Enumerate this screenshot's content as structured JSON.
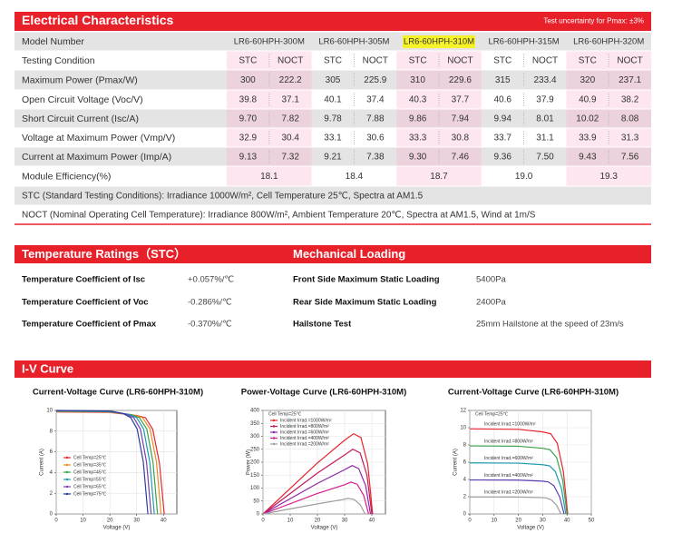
{
  "header": {
    "title": "Electrical Characteristics",
    "note": "Test uncertainty for Pmax: ±3%"
  },
  "table": {
    "header": [
      "Model Number",
      "LR6-60HPH-300M",
      "LR6-60HPH-305M",
      "LR6-60HPH-310M",
      "LR6-60HPH-315M",
      "LR6-60HPH-320M"
    ],
    "condition": [
      "Testing Condition",
      "STC",
      "NOCT",
      "STC",
      "NOCT",
      "STC",
      "NOCT",
      "STC",
      "NOCT",
      "STC",
      "NOCT"
    ],
    "rows": [
      [
        "Maximum Power (Pmax/W)",
        "300",
        "222.2",
        "305",
        "225.9",
        "310",
        "229.6",
        "315",
        "233.4",
        "320",
        "237.1"
      ],
      [
        "Open Circuit Voltage (Voc/V)",
        "39.8",
        "37.1",
        "40.1",
        "37.4",
        "40.3",
        "37.7",
        "40.6",
        "37.9",
        "40.9",
        "38.2"
      ],
      [
        "Short Circuit Current (Isc/A)",
        "9.70",
        "7.82",
        "9.78",
        "7.88",
        "9.86",
        "7.94",
        "9.94",
        "8.01",
        "10.02",
        "8.08"
      ],
      [
        "Voltage at Maximum Power (Vmp/V)",
        "32.9",
        "30.4",
        "33.1",
        "30.6",
        "33.3",
        "30.8",
        "33.7",
        "31.1",
        "33.9",
        "31.3"
      ],
      [
        "Current at Maximum Power (Imp/A)",
        "9.13",
        "7.32",
        "9.21",
        "7.38",
        "9.30",
        "7.46",
        "9.36",
        "7.50",
        "9.43",
        "7.56"
      ]
    ],
    "efficiency": [
      "Module Efficiency(%)",
      "18.1",
      "18.4",
      "18.7",
      "19.0",
      "19.3"
    ],
    "notes": [
      "STC (Standard Testing Conditions): Irradiance 1000W/m², Cell Temperature 25℃, Spectra at AM1.5",
      "NOCT (Nominal Operating Cell Temperature): Irradiance 800W/m², Ambient Temperature 20℃, Spectra at AM1.5, Wind at 1m/S"
    ]
  },
  "temperature": {
    "title": "Temperature Ratings（STC）",
    "rows": [
      [
        "Temperature Coefficient of  Isc",
        "+0.057%/℃"
      ],
      [
        "Temperature Coefficient of  Voc",
        "-0.286%/℃"
      ],
      [
        "Temperature Coefficient of  Pmax",
        "-0.370%/℃"
      ]
    ]
  },
  "mechanical": {
    "title": "Mechanical Loading",
    "rows": [
      [
        "Front Side Maximum Static Loading",
        "5400Pa"
      ],
      [
        "Rear Side Maximum Static Loading",
        "2400Pa"
      ],
      [
        "Hailstone Test",
        "25mm Hailstone at the speed of 23m/s"
      ]
    ]
  },
  "curves_title": "I-V Curve",
  "chart_data": [
    {
      "type": "line",
      "title": "Current-Voltage Curve (LR6-60HPH-310M)",
      "x_label": "Voltage (V)",
      "y_label": "Current (A)",
      "xlim": [
        0,
        45
      ],
      "ylim": [
        0,
        10
      ],
      "xticks": [
        0,
        10,
        20,
        30,
        40
      ],
      "yticks": [
        0,
        2,
        4,
        6,
        8,
        10
      ],
      "grid": true,
      "legend": "lower left",
      "series": [
        {
          "name": "Cell Temp=25℃",
          "color": "#e8262d",
          "x": [
            0,
            20,
            30,
            33.3,
            36,
            38.5,
            40.3
          ],
          "values": [
            9.86,
            9.81,
            9.51,
            9.3,
            8.18,
            4.93,
            0
          ]
        },
        {
          "name": "Cell Temp=35℃",
          "color": "#f08a24",
          "x": [
            0,
            20,
            29,
            32.2,
            35,
            37.4,
            39.1
          ],
          "values": [
            9.89,
            9.84,
            9.55,
            9.3,
            8.2,
            5,
            0
          ]
        },
        {
          "name": "Cell Temp=45℃",
          "color": "#3aa24a",
          "x": [
            0,
            20,
            28,
            31,
            33.8,
            36.1,
            37.8
          ],
          "values": [
            9.92,
            9.87,
            9.6,
            9.3,
            8.2,
            5,
            0
          ]
        },
        {
          "name": "Cell Temp=55℃",
          "color": "#1f9bb0",
          "x": [
            0,
            20,
            27,
            30,
            32.6,
            34.9,
            36.6
          ],
          "values": [
            9.95,
            9.9,
            9.62,
            9.3,
            8.2,
            5,
            0
          ]
        },
        {
          "name": "Cell Temp=65℃",
          "color": "#7a3fb0",
          "x": [
            0,
            20,
            26,
            28.9,
            31.4,
            33.7,
            35.4
          ],
          "values": [
            9.98,
            9.93,
            9.65,
            9.3,
            8.2,
            5,
            0
          ]
        },
        {
          "name": "Cell Temp=75℃",
          "color": "#2b3f9e",
          "x": [
            0,
            20,
            25,
            27.8,
            30.2,
            32.5,
            34.2
          ],
          "values": [
            10,
            9.95,
            9.7,
            9.3,
            8.2,
            5,
            0
          ]
        }
      ]
    },
    {
      "type": "line",
      "title": "Power-Voltage Curve (LR6-60HPH-310M)",
      "x_label": "Voltage (V)",
      "y_label": "Power (W)",
      "xlim": [
        0,
        45
      ],
      "ylim": [
        0,
        400
      ],
      "xticks": [
        0,
        10,
        20,
        30,
        40
      ],
      "yticks": [
        0,
        50,
        100,
        150,
        200,
        250,
        300,
        350,
        400
      ],
      "grid": true,
      "legend": "upper left",
      "annotation": "Cell Temp=25℃",
      "series": [
        {
          "name": "Incident Irrad.=1000W/m²",
          "color": "#e8262d",
          "x": [
            0,
            20,
            30,
            33.3,
            36,
            38.5,
            40.3
          ],
          "values": [
            0,
            197,
            285,
            310,
            295,
            192,
            0
          ]
        },
        {
          "name": "Incident Irrad.=800W/m²",
          "color": "#c2185b",
          "x": [
            0,
            20,
            30,
            33,
            35.7,
            38.2,
            40
          ],
          "values": [
            0,
            158,
            228,
            250,
            236,
            150,
            0
          ]
        },
        {
          "name": "Incident Irrad.=600W/m²",
          "color": "#8e24aa",
          "x": [
            0,
            20,
            30,
            32.8,
            35.2,
            37.7,
            39.5
          ],
          "values": [
            0,
            118,
            171,
            187,
            175,
            110,
            0
          ]
        },
        {
          "name": "Incident Irrad.=400W/m²",
          "color": "#d81b8c",
          "x": [
            0,
            20,
            30,
            32.3,
            34.6,
            37,
            38.8
          ],
          "values": [
            0,
            79,
            113,
            123,
            115,
            72,
            0
          ]
        },
        {
          "name": "Incident Irrad.=200W/m²",
          "color": "#9e9e9e",
          "x": [
            0,
            20,
            29,
            31.3,
            33.5,
            35.8,
            37.5
          ],
          "values": [
            0,
            39,
            55,
            60,
            56,
            35,
            0
          ]
        }
      ]
    },
    {
      "type": "line",
      "title": "Current-Voltage Curve (LR6-60HPH-310M)",
      "x_label": "Voltage (V)",
      "y_label": "Current (A)",
      "xlim": [
        0,
        50
      ],
      "ylim": [
        0,
        12
      ],
      "xticks": [
        0,
        10,
        20,
        30,
        40,
        50
      ],
      "yticks": [
        0,
        2,
        4,
        6,
        8,
        10,
        12
      ],
      "grid": true,
      "legend": "inline",
      "annotation": "Cell Temp=25℃",
      "series": [
        {
          "name": "Incident Irrad.=1000W/m²",
          "color": "#e8262d",
          "x": [
            0,
            20,
            30,
            33.3,
            36,
            38.5,
            40.3
          ],
          "values": [
            9.86,
            9.81,
            9.51,
            9.3,
            8.18,
            4.93,
            0
          ]
        },
        {
          "name": "Incident Irrad.=800W/m²",
          "color": "#3aa24a",
          "x": [
            0,
            20,
            30,
            33,
            35.7,
            38.2,
            40
          ],
          "values": [
            7.89,
            7.85,
            7.61,
            7.44,
            6.55,
            3.95,
            0
          ]
        },
        {
          "name": "Incident Irrad.=600W/m²",
          "color": "#1f9bb0",
          "x": [
            0,
            20,
            30,
            32.8,
            35.2,
            37.7,
            39.5
          ],
          "values": [
            5.92,
            5.89,
            5.71,
            5.58,
            4.91,
            2.96,
            0
          ]
        },
        {
          "name": "Incident Irrad.=400W/m²",
          "color": "#5b3fb0",
          "x": [
            0,
            20,
            30,
            32.3,
            34.6,
            37,
            38.8
          ],
          "values": [
            3.94,
            3.92,
            3.8,
            3.72,
            3.27,
            1.97,
            0
          ]
        },
        {
          "name": "Incident Irrad.=200W/m²",
          "color": "#9e9e9e",
          "x": [
            0,
            20,
            29,
            31.3,
            33.5,
            35.8,
            37.5
          ],
          "values": [
            1.97,
            1.96,
            1.9,
            1.86,
            1.64,
            0.99,
            0
          ]
        }
      ]
    }
  ]
}
